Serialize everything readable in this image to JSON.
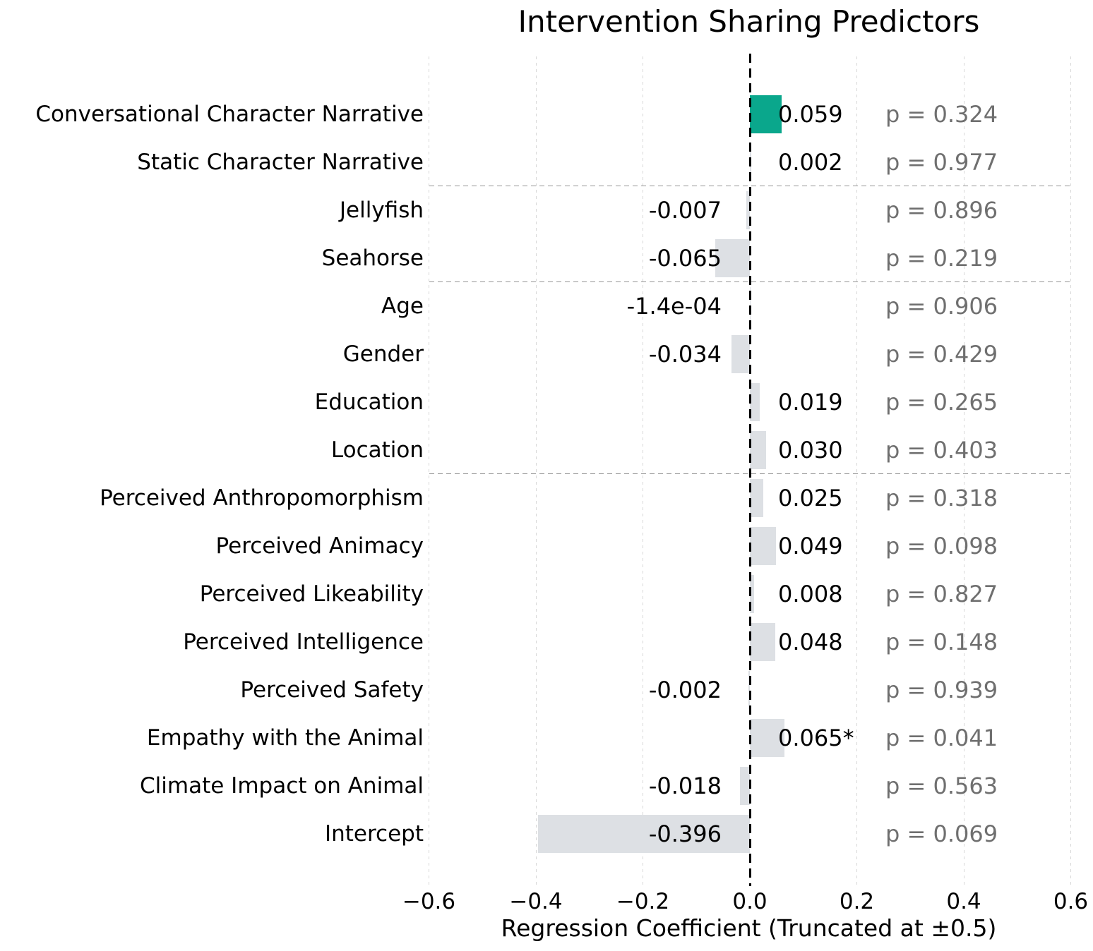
{
  "chart_data": {
    "type": "bar",
    "orientation": "horizontal",
    "title": "Intervention Sharing Predictors",
    "xlabel": "Regression Coefficient (Truncated at ±0.5)",
    "xlim": [
      -0.6,
      0.6
    ],
    "grid": "vertical dashed gridlines at each x tick",
    "legend_position": "none",
    "zero_reference_line": "black dashed vertical line at x = 0",
    "xticks": [
      -0.6,
      -0.4,
      -0.2,
      0.0,
      0.2,
      0.4,
      0.6
    ],
    "xtick_labels": [
      "−0.6",
      "−0.4",
      "−0.2",
      "0.0",
      "0.2",
      "0.4",
      "0.6"
    ],
    "rows": [
      {
        "label": "Conversational Character Narrative",
        "value": 0.059,
        "value_label": "0.059",
        "p_label": "p = 0.324",
        "highlight": true
      },
      {
        "label": "Static Character Narrative",
        "value": 0.002,
        "value_label": "0.002",
        "p_label": "p = 0.977",
        "highlight": false
      },
      {
        "label": "Jellyfish",
        "value": -0.007,
        "value_label": "-0.007",
        "p_label": "p = 0.896",
        "highlight": false
      },
      {
        "label": "Seahorse",
        "value": -0.065,
        "value_label": "-0.065",
        "p_label": "p = 0.219",
        "highlight": false
      },
      {
        "label": "Age",
        "value": -0.00014,
        "value_label": "-1.4e-04",
        "p_label": "p = 0.906",
        "highlight": false
      },
      {
        "label": "Gender",
        "value": -0.034,
        "value_label": "-0.034",
        "p_label": "p = 0.429",
        "highlight": false
      },
      {
        "label": "Education",
        "value": 0.019,
        "value_label": "0.019",
        "p_label": "p = 0.265",
        "highlight": false
      },
      {
        "label": "Location",
        "value": 0.03,
        "value_label": "0.030",
        "p_label": "p = 0.403",
        "highlight": false
      },
      {
        "label": "Perceived Anthropomorphism",
        "value": 0.025,
        "value_label": "0.025",
        "p_label": "p = 0.318",
        "highlight": false
      },
      {
        "label": "Perceived Animacy",
        "value": 0.049,
        "value_label": "0.049",
        "p_label": "p = 0.098",
        "highlight": false
      },
      {
        "label": "Perceived Likeability",
        "value": 0.008,
        "value_label": "0.008",
        "p_label": "p = 0.827",
        "highlight": false
      },
      {
        "label": "Perceived Intelligence",
        "value": 0.048,
        "value_label": "0.048",
        "p_label": "p = 0.148",
        "highlight": false
      },
      {
        "label": "Perceived Safety",
        "value": -0.002,
        "value_label": "-0.002",
        "p_label": "p = 0.939",
        "highlight": false
      },
      {
        "label": "Empathy with the Animal",
        "value": 0.065,
        "value_label": "0.065*",
        "p_label": "p = 0.041",
        "highlight": false
      },
      {
        "label": "Climate Impact on Animal",
        "value": -0.018,
        "value_label": "-0.018",
        "p_label": "p = 0.563",
        "highlight": false
      },
      {
        "label": "Intercept",
        "value": -0.396,
        "value_label": "-0.396",
        "p_label": "p = 0.069",
        "highlight": false
      }
    ],
    "separators_after": [
      "Static Character Narrative",
      "Seahorse",
      "Location"
    ],
    "colors": {
      "highlight_bar": "#0aa78c",
      "default_bar": "#dde0e4",
      "zero_line": "#000000",
      "gridline": "#d7d7d7",
      "separator": "#969696",
      "value_text": "#000000",
      "axis_text": "#000000",
      "p_text": "#6f6f6f",
      "background": "#ffffff"
    }
  }
}
